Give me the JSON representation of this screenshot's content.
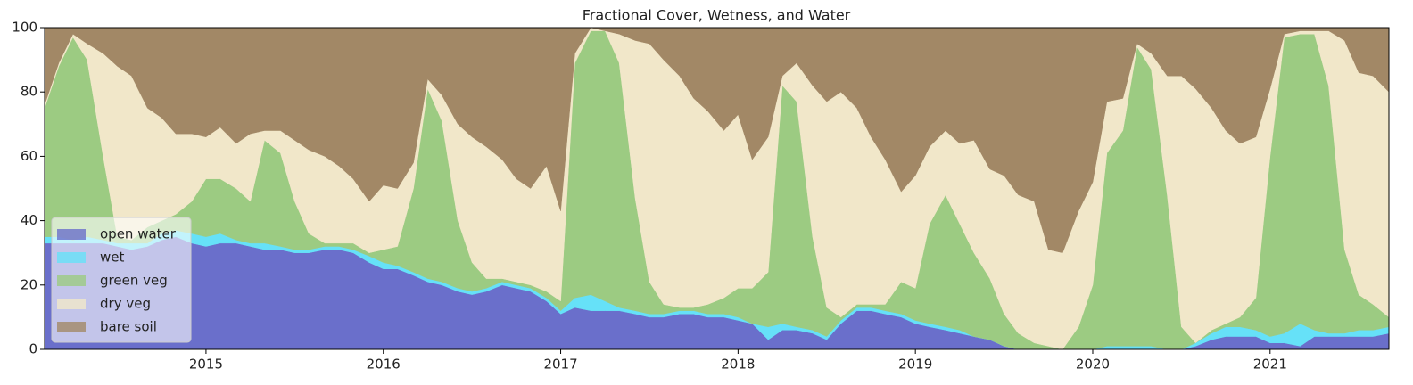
{
  "chart_data": {
    "type": "stacked_area",
    "title": "Fractional Cover, Wetness, and Water",
    "x": [
      2014.09,
      2014.17,
      2014.25,
      2014.33,
      2014.42,
      2014.5,
      2014.58,
      2014.67,
      2014.75,
      2014.83,
      2014.92,
      2015.0,
      2015.08,
      2015.17,
      2015.25,
      2015.33,
      2015.42,
      2015.5,
      2015.58,
      2015.67,
      2015.75,
      2015.83,
      2015.92,
      2016.0,
      2016.08,
      2016.17,
      2016.25,
      2016.33,
      2016.42,
      2016.5,
      2016.58,
      2016.67,
      2016.75,
      2016.83,
      2016.92,
      2017.0,
      2017.08,
      2017.17,
      2017.25,
      2017.33,
      2017.42,
      2017.5,
      2017.58,
      2017.67,
      2017.75,
      2017.83,
      2017.92,
      2018.0,
      2018.08,
      2018.17,
      2018.25,
      2018.33,
      2018.42,
      2018.5,
      2018.58,
      2018.67,
      2018.75,
      2018.83,
      2018.92,
      2019.0,
      2019.08,
      2019.17,
      2019.25,
      2019.33,
      2019.42,
      2019.5,
      2019.58,
      2019.67,
      2019.75,
      2019.83,
      2019.92,
      2020.0,
      2020.08,
      2020.17,
      2020.25,
      2020.33,
      2020.42,
      2020.5,
      2020.58,
      2020.67,
      2020.75,
      2020.83,
      2020.92,
      2021.0,
      2021.08,
      2021.17,
      2021.25,
      2021.33,
      2021.42,
      2021.5,
      2021.58,
      2021.67
    ],
    "series": [
      {
        "name": "open water",
        "color": "#6a6fcb",
        "values": [
          33,
          33,
          33,
          33,
          33,
          32,
          31,
          32,
          34,
          35,
          33,
          32,
          33,
          33,
          32,
          31,
          31,
          30,
          30,
          31,
          31,
          30,
          27,
          25,
          25,
          23,
          21,
          20,
          18,
          17,
          18,
          20,
          19,
          18,
          15,
          11,
          13,
          12,
          12,
          12,
          11,
          10,
          10,
          11,
          11,
          10,
          10,
          9,
          8,
          3,
          6,
          6,
          5,
          3,
          8,
          12,
          12,
          11,
          10,
          8,
          7,
          6,
          5,
          4,
          3,
          1,
          0,
          0,
          0,
          0,
          0,
          0,
          0,
          0,
          0,
          0,
          0,
          0,
          1,
          3,
          4,
          4,
          4,
          2,
          2,
          1,
          4,
          4,
          4,
          4,
          4,
          5
        ]
      },
      {
        "name": "wet",
        "color": "#66e1f8",
        "values": [
          2,
          2,
          1,
          2,
          1,
          1,
          2,
          1,
          2,
          2,
          3,
          3,
          3,
          1,
          1,
          2,
          1,
          1,
          1,
          1,
          1,
          1,
          2,
          2,
          1,
          1,
          1,
          1,
          1,
          1,
          1,
          1,
          1,
          1,
          1,
          1,
          3,
          5,
          3,
          1,
          1,
          1,
          1,
          1,
          1,
          1,
          1,
          1,
          0,
          4,
          2,
          1,
          1,
          1,
          1,
          1,
          1,
          1,
          1,
          1,
          1,
          1,
          1,
          0,
          0,
          0,
          0,
          0,
          0,
          0,
          0,
          0,
          1,
          1,
          1,
          1,
          0,
          0,
          1,
          2,
          3,
          3,
          2,
          2,
          3,
          7,
          2,
          1,
          1,
          2,
          2,
          2
        ]
      },
      {
        "name": "green veg",
        "color": "#9ccb82",
        "values": [
          40,
          53,
          63,
          55,
          26,
          2,
          1,
          5,
          4,
          5,
          10,
          18,
          17,
          16,
          13,
          32,
          29,
          15,
          5,
          1,
          1,
          2,
          1,
          4,
          6,
          26,
          59,
          50,
          21,
          9,
          3,
          1,
          1,
          1,
          2,
          3,
          73,
          82,
          84,
          76,
          35,
          10,
          3,
          1,
          1,
          3,
          5,
          9,
          11,
          17,
          74,
          70,
          29,
          9,
          1,
          1,
          1,
          2,
          10,
          10,
          31,
          41,
          33,
          26,
          19,
          10,
          5,
          2,
          1,
          0,
          7,
          20,
          60,
          67,
          93,
          86,
          48,
          7,
          0,
          1,
          1,
          3,
          10,
          56,
          92,
          90,
          92,
          77,
          26,
          11,
          8,
          3
        ]
      },
      {
        "name": "dry veg",
        "color": "#f1e7c9",
        "values": [
          1,
          1,
          1,
          5,
          32,
          53,
          51,
          37,
          32,
          25,
          21,
          13,
          16,
          14,
          21,
          3,
          7,
          19,
          26,
          27,
          24,
          20,
          16,
          20,
          18,
          8,
          3,
          8,
          30,
          39,
          41,
          37,
          32,
          30,
          39,
          28,
          3,
          1,
          0,
          9,
          49,
          74,
          76,
          72,
          65,
          60,
          52,
          54,
          40,
          42,
          3,
          12,
          47,
          64,
          70,
          61,
          52,
          45,
          28,
          35,
          24,
          20,
          25,
          35,
          34,
          43,
          43,
          44,
          30,
          30,
          36,
          32,
          16,
          10,
          1,
          5,
          37,
          78,
          79,
          69,
          60,
          54,
          50,
          21,
          1,
          1,
          1,
          17,
          65,
          69,
          71,
          70
        ]
      },
      {
        "name": "bare soil",
        "color": "#a28866",
        "values": [
          24,
          11,
          2,
          5,
          8,
          12,
          15,
          25,
          28,
          33,
          33,
          34,
          31,
          36,
          33,
          32,
          32,
          35,
          38,
          40,
          43,
          47,
          54,
          49,
          50,
          42,
          16,
          21,
          30,
          34,
          37,
          41,
          47,
          50,
          43,
          57,
          8,
          0,
          1,
          2,
          4,
          5,
          10,
          15,
          22,
          26,
          32,
          27,
          41,
          34,
          15,
          11,
          18,
          23,
          20,
          25,
          34,
          41,
          51,
          46,
          37,
          32,
          36,
          35,
          44,
          46,
          52,
          54,
          69,
          70,
          57,
          48,
          23,
          22,
          5,
          8,
          15,
          15,
          19,
          25,
          32,
          36,
          34,
          19,
          2,
          1,
          1,
          1,
          4,
          14,
          15,
          20
        ]
      }
    ],
    "xlim": [
      2014.09,
      2021.67
    ],
    "xticks": [
      2015,
      2016,
      2017,
      2018,
      2019,
      2020,
      2021
    ],
    "ylim": [
      0,
      100
    ],
    "yticks": [
      0,
      20,
      40,
      60,
      80,
      100
    ],
    "legend": "lower left"
  }
}
